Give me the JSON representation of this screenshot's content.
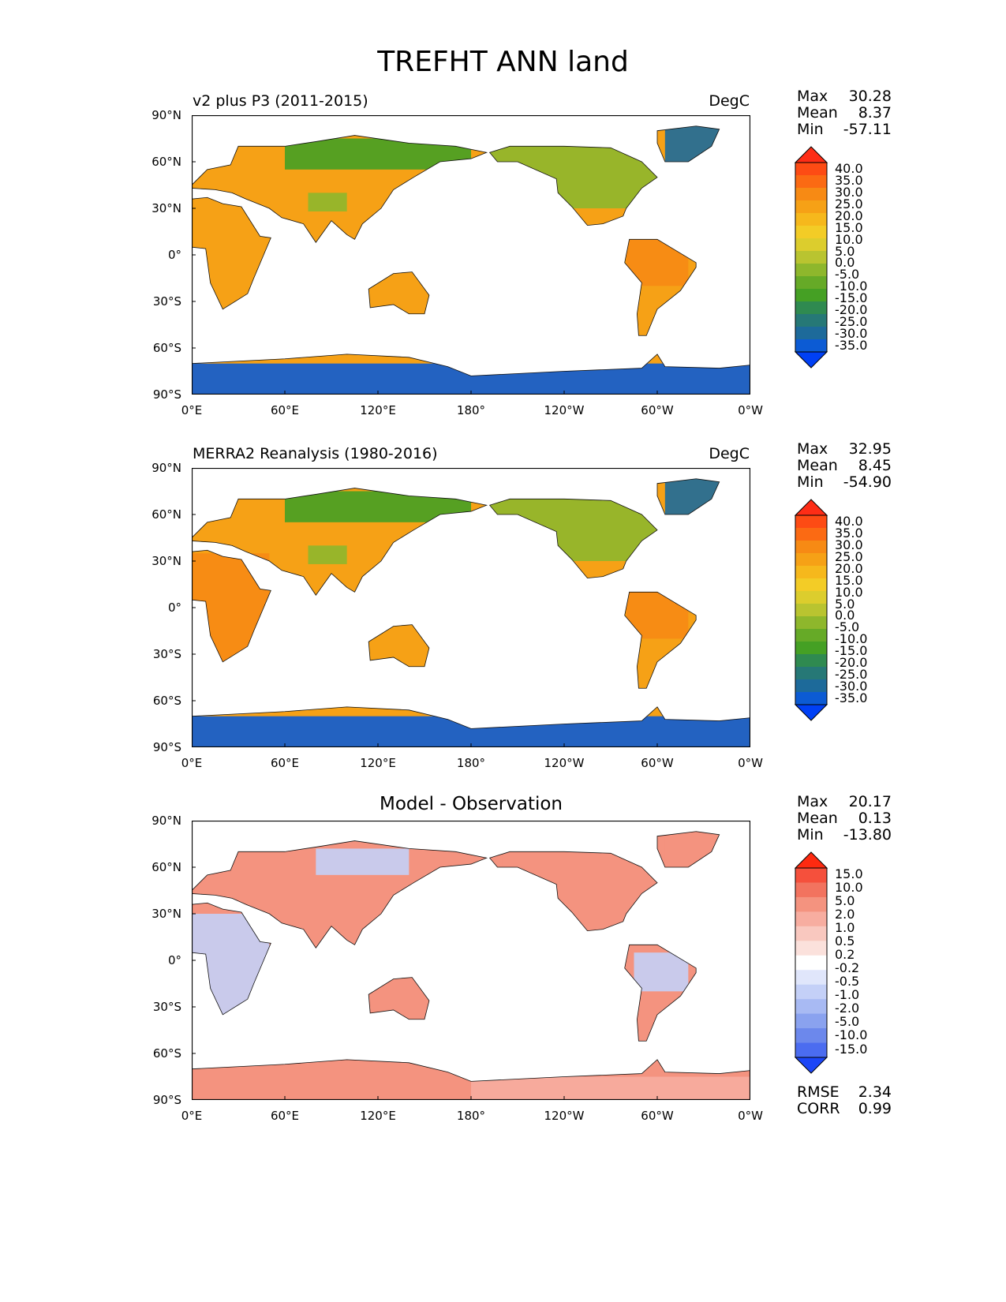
{
  "figure": {
    "title": "TREFHT ANN land"
  },
  "chart_data": [
    {
      "type": "heatmap",
      "panel": "test",
      "title": "v2 plus P3 (2011-2015)",
      "units": "DegC",
      "stats": {
        "max": "30.28",
        "mean": "8.37",
        "min": "-57.11"
      },
      "x_ticks": [
        "0°E",
        "60°E",
        "120°E",
        "180°",
        "120°W",
        "60°W",
        "0°W"
      ],
      "y_ticks": [
        "90°N",
        "60°N",
        "30°N",
        "0°",
        "30°S",
        "60°S",
        "90°S"
      ],
      "xlim": [
        0,
        360
      ],
      "ylim": [
        -90,
        90
      ],
      "colorbar": {
        "levels": [
          "40.0",
          "35.0",
          "30.0",
          "25.0",
          "20.0",
          "15.0",
          "10.0",
          "5.0",
          "0.0",
          "-5.0",
          "-10.0",
          "-15.0",
          "-20.0",
          "-25.0",
          "-30.0",
          "-35.0"
        ],
        "colors": [
          "#fe2d16",
          "#fd4b14",
          "#fb6a13",
          "#f78a14",
          "#f6a116",
          "#f6b81c",
          "#f3cc26",
          "#dccd2d",
          "#b9c430",
          "#8eb72c",
          "#66aa27",
          "#45a024",
          "#2f8a50",
          "#267876",
          "#1d6a9a",
          "#0c5bd4",
          "#0040f5"
        ],
        "extend": "both"
      },
      "regions": [
        {
          "name": "antarctica",
          "lon": [
            0,
            360
          ],
          "lat": [
            -90,
            -70
          ],
          "value": -35.0
        },
        {
          "name": "siberia",
          "lon": [
            60,
            180
          ],
          "lat": [
            55,
            75
          ],
          "value": -12.0
        },
        {
          "name": "tibet",
          "lon": [
            75,
            100
          ],
          "lat": [
            28,
            40
          ],
          "value": -4.0
        },
        {
          "name": "africa",
          "lon": [
            0,
            50
          ],
          "lat": [
            -35,
            35
          ],
          "value": 24.0
        },
        {
          "name": "amazon",
          "lon": [
            280,
            320
          ],
          "lat": [
            -20,
            10
          ],
          "value": 25.0
        },
        {
          "name": "australia",
          "lon": [
            115,
            155
          ],
          "lat": [
            -40,
            -12
          ],
          "value": 22.0
        },
        {
          "name": "north-america",
          "lon": [
            190,
            300
          ],
          "lat": [
            30,
            70
          ],
          "value": -2.0
        },
        {
          "name": "greenland",
          "lon": [
            305,
            340
          ],
          "lat": [
            60,
            83
          ],
          "value": -28.0
        }
      ]
    },
    {
      "type": "heatmap",
      "panel": "reference",
      "title": "MERRA2 Reanalysis (1980-2016)",
      "units": "DegC",
      "stats": {
        "max": "32.95",
        "mean": "8.45",
        "min": "-54.90"
      },
      "x_ticks": [
        "0°E",
        "60°E",
        "120°E",
        "180°",
        "120°W",
        "60°W",
        "0°W"
      ],
      "y_ticks": [
        "90°N",
        "60°N",
        "30°N",
        "0°",
        "30°S",
        "60°S",
        "90°S"
      ],
      "xlim": [
        0,
        360
      ],
      "ylim": [
        -90,
        90
      ],
      "colorbar": {
        "levels": [
          "40.0",
          "35.0",
          "30.0",
          "25.0",
          "20.0",
          "15.0",
          "10.0",
          "5.0",
          "0.0",
          "-5.0",
          "-10.0",
          "-15.0",
          "-20.0",
          "-25.0",
          "-30.0",
          "-35.0"
        ],
        "colors": [
          "#fe2d16",
          "#fd4b14",
          "#fb6a13",
          "#f78a14",
          "#f6a116",
          "#f6b81c",
          "#f3cc26",
          "#dccd2d",
          "#b9c430",
          "#8eb72c",
          "#66aa27",
          "#45a024",
          "#2f8a50",
          "#267876",
          "#1d6a9a",
          "#0c5bd4",
          "#0040f5"
        ],
        "extend": "both"
      },
      "regions": [
        {
          "name": "antarctica",
          "lon": [
            0,
            360
          ],
          "lat": [
            -90,
            -70
          ],
          "value": -35.0
        },
        {
          "name": "siberia",
          "lon": [
            60,
            180
          ],
          "lat": [
            55,
            75
          ],
          "value": -12.0
        },
        {
          "name": "tibet",
          "lon": [
            75,
            100
          ],
          "lat": [
            28,
            40
          ],
          "value": -2.0
        },
        {
          "name": "africa",
          "lon": [
            0,
            50
          ],
          "lat": [
            -35,
            35
          ],
          "value": 25.0
        },
        {
          "name": "amazon",
          "lon": [
            280,
            320
          ],
          "lat": [
            -20,
            10
          ],
          "value": 26.0
        },
        {
          "name": "australia",
          "lon": [
            115,
            155
          ],
          "lat": [
            -40,
            -12
          ],
          "value": 23.0
        },
        {
          "name": "north-america",
          "lon": [
            190,
            300
          ],
          "lat": [
            30,
            70
          ],
          "value": -1.0
        },
        {
          "name": "greenland",
          "lon": [
            305,
            340
          ],
          "lat": [
            60,
            83
          ],
          "value": -26.0
        }
      ]
    },
    {
      "type": "heatmap",
      "panel": "difference",
      "title": "Model - Observation",
      "units": "",
      "stats": {
        "max": "20.17",
        "mean": "0.13",
        "min": "-13.80"
      },
      "metrics": {
        "rmse_label": "RMSE",
        "rmse": "2.34",
        "corr_label": "CORR",
        "corr": "0.99"
      },
      "x_ticks": [
        "0°E",
        "60°E",
        "120°E",
        "180°",
        "120°W",
        "60°W",
        "0°W"
      ],
      "y_ticks": [
        "90°N",
        "60°N",
        "30°N",
        "0°",
        "30°S",
        "60°S",
        "90°S"
      ],
      "xlim": [
        0,
        360
      ],
      "ylim": [
        -90,
        90
      ],
      "colorbar": {
        "levels": [
          "15.0",
          "10.0",
          "5.0",
          "2.0",
          "1.0",
          "0.5",
          "0.2",
          "-0.2",
          "-0.5",
          "-1.0",
          "-2.0",
          "-5.0",
          "-10.0",
          "-15.0"
        ],
        "colors": [
          "#fe2a10",
          "#f5503c",
          "#f2735f",
          "#f4937f",
          "#f7ada0",
          "#f9c8bf",
          "#fbe1dc",
          "#ffffff",
          "#e0e6fb",
          "#c4d0f7",
          "#a8baf3",
          "#8aa2ef",
          "#6c88ec",
          "#4b6cf0",
          "#1c46f7"
        ],
        "extend": "both"
      },
      "regions": [
        {
          "name": "eurasia-west",
          "lon": [
            0,
            60
          ],
          "lat": [
            45,
            70
          ],
          "value": 2.0
        },
        {
          "name": "siberia",
          "lon": [
            80,
            140
          ],
          "lat": [
            55,
            72
          ],
          "value": -1.0
        },
        {
          "name": "africa",
          "lon": [
            0,
            50
          ],
          "lat": [
            -35,
            30
          ],
          "value": -1.0
        },
        {
          "name": "north-america",
          "lon": [
            200,
            300
          ],
          "lat": [
            30,
            70
          ],
          "value": 2.0
        },
        {
          "name": "amazon",
          "lon": [
            285,
            320
          ],
          "lat": [
            -20,
            5
          ],
          "value": -1.0
        },
        {
          "name": "greenland",
          "lon": [
            305,
            340
          ],
          "lat": [
            60,
            83
          ],
          "value": 3.0
        },
        {
          "name": "antarctica-east",
          "lon": [
            60,
            180
          ],
          "lat": [
            -90,
            -70
          ],
          "value": 2.0
        },
        {
          "name": "antarctica-west",
          "lon": [
            180,
            360
          ],
          "lat": [
            -90,
            -75
          ],
          "value": 1.0
        }
      ]
    }
  ]
}
